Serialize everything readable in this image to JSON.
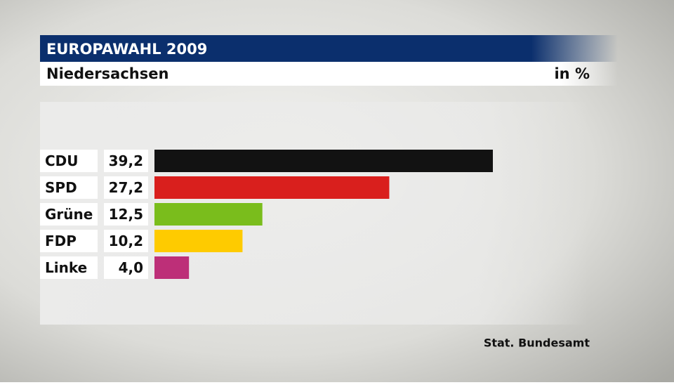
{
  "chart_data": {
    "type": "bar",
    "orientation": "horizontal",
    "title": "EUROPAWAHL 2009",
    "subtitle": "Niedersachsen",
    "unit": "in %",
    "source": "Stat. Bundesamt",
    "categories": [
      "CDU",
      "SPD",
      "Grüne",
      "FDP",
      "Linke"
    ],
    "values": [
      39.2,
      27.2,
      12.5,
      10.2,
      4.0
    ],
    "value_labels": [
      "39,2",
      "27,2",
      "12,5",
      "10,2",
      "4,0"
    ],
    "colors": [
      "#121212",
      "#d91f1d",
      "#7abd1c",
      "#fecb00",
      "#bd2f78"
    ]
  }
}
